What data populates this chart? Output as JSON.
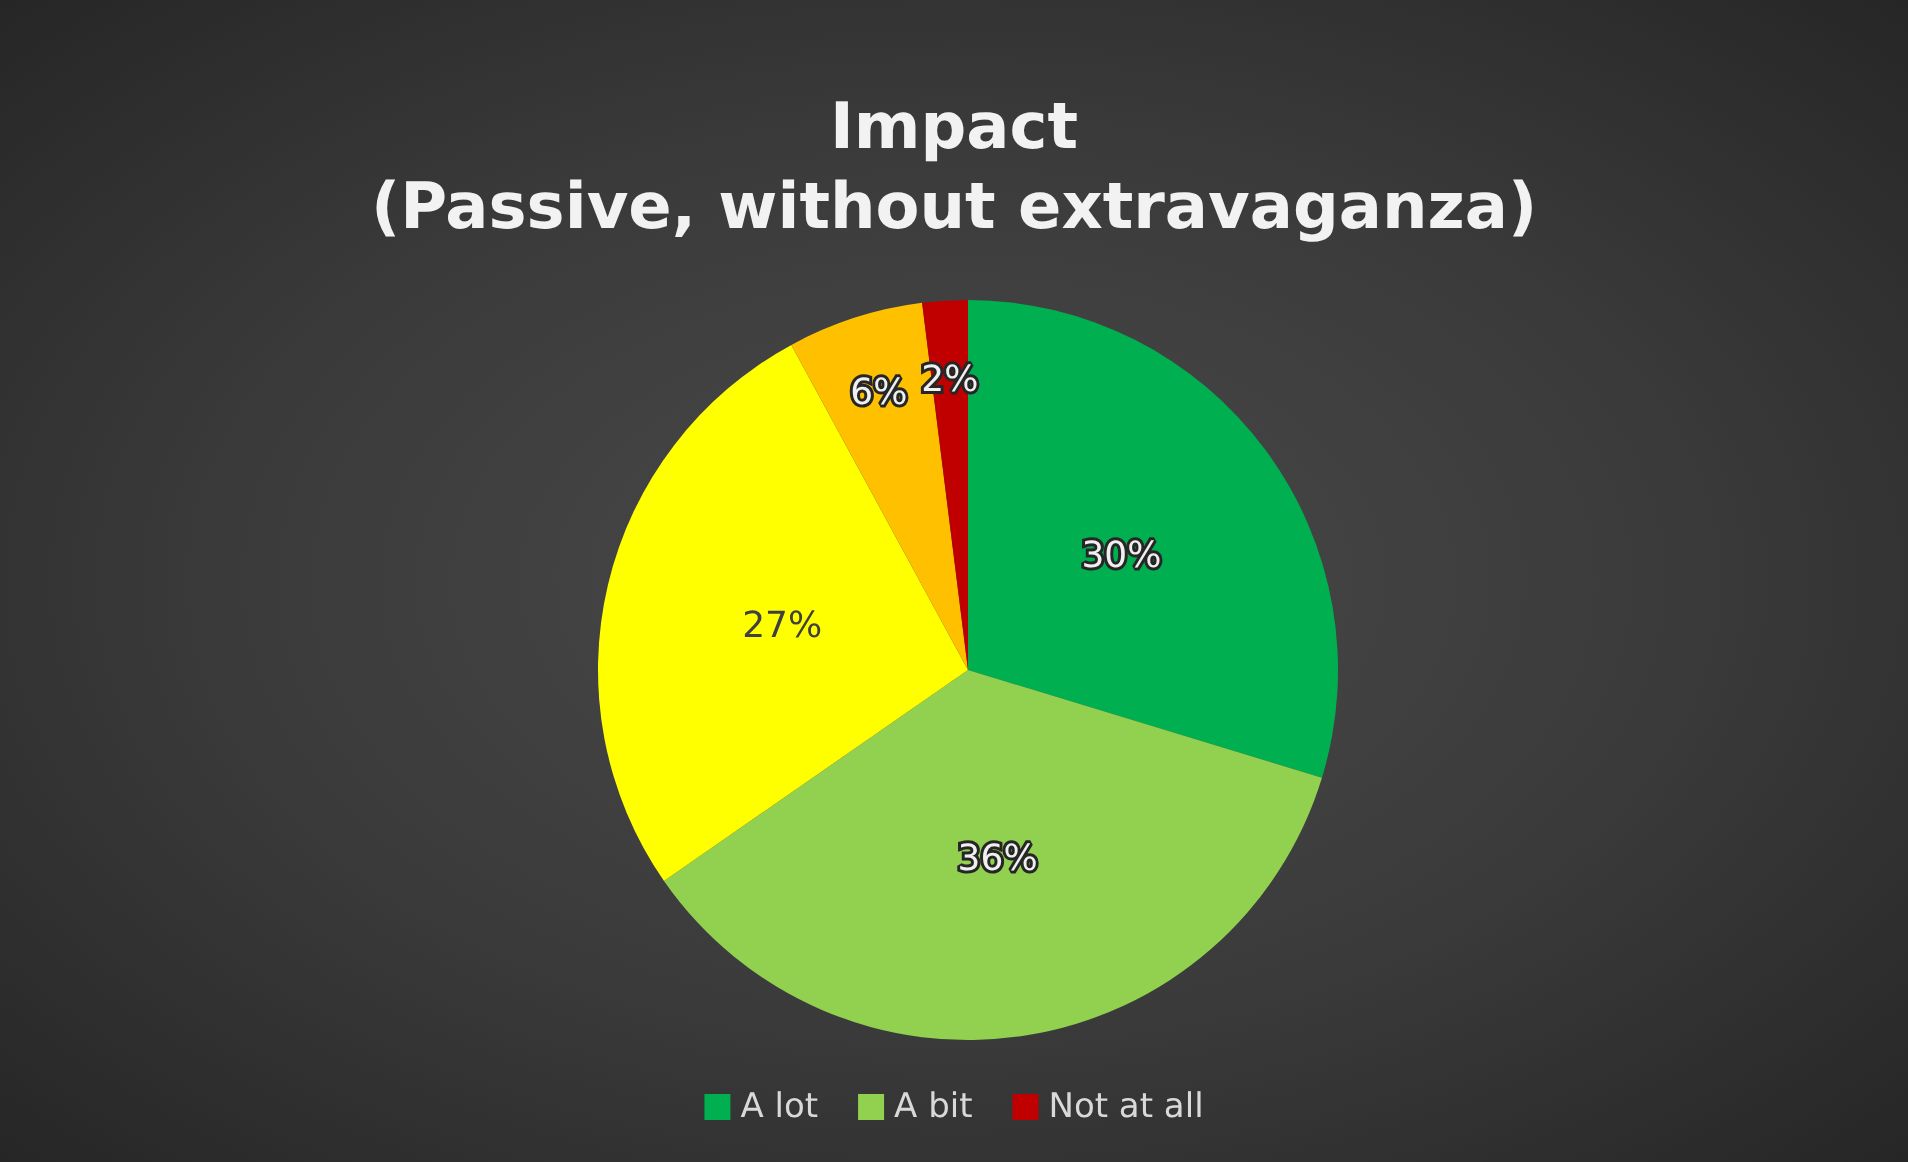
{
  "chart_data": {
    "type": "pie",
    "title": "Impact\n(Passive, without extravaganza)",
    "categories": [
      "A lot",
      "A bit",
      null,
      null,
      "Not at all"
    ],
    "values": [
      30,
      36,
      27,
      6,
      2
    ],
    "colors": [
      "#00b050",
      "#92d050",
      "#ffff00",
      "#ffc000",
      "#c00000"
    ],
    "value_labels": [
      "30%",
      "36%",
      "27%",
      "6%",
      "2%"
    ],
    "legend": "bottom"
  }
}
